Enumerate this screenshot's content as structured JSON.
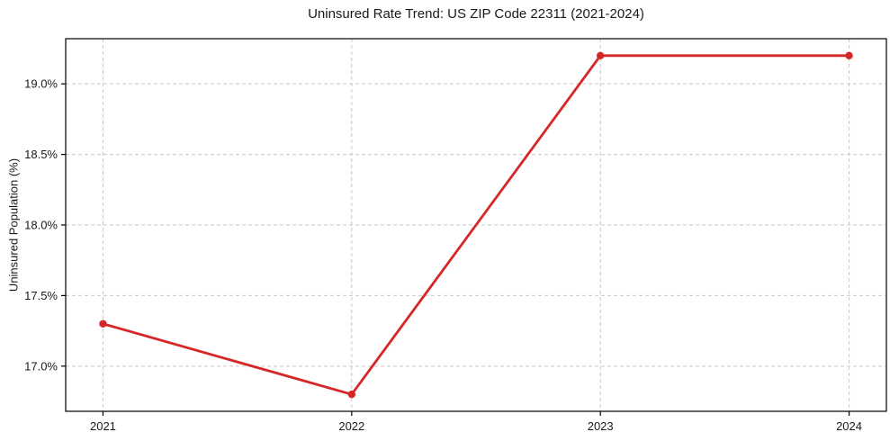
{
  "figure": {
    "background": "#ffffff"
  },
  "chart_data": {
    "type": "line",
    "title": "Uninsured Rate Trend: US ZIP Code 22311 (2021-2024)",
    "xlabel": "",
    "ylabel": "Uninsured Population (%)",
    "x": [
      2021,
      2022,
      2023,
      2024
    ],
    "values": [
      17.3,
      16.8,
      19.2,
      19.2
    ],
    "x_tick_labels": [
      "2021",
      "2022",
      "2023",
      "2024"
    ],
    "y_ticks": [
      17.0,
      17.5,
      18.0,
      18.5,
      19.0
    ],
    "y_tick_labels": [
      "17.0%",
      "17.5%",
      "18.0%",
      "18.5%",
      "19.0%"
    ],
    "xlim": [
      2020.85,
      2024.15
    ],
    "ylim": [
      16.68,
      19.32
    ],
    "grid": {
      "visible": true,
      "axis": "both",
      "style": "dashed",
      "color": "#c9c9c9"
    },
    "legend": "none",
    "line_color": "#d62728",
    "marker": "circle",
    "spine_color": "#000000"
  }
}
